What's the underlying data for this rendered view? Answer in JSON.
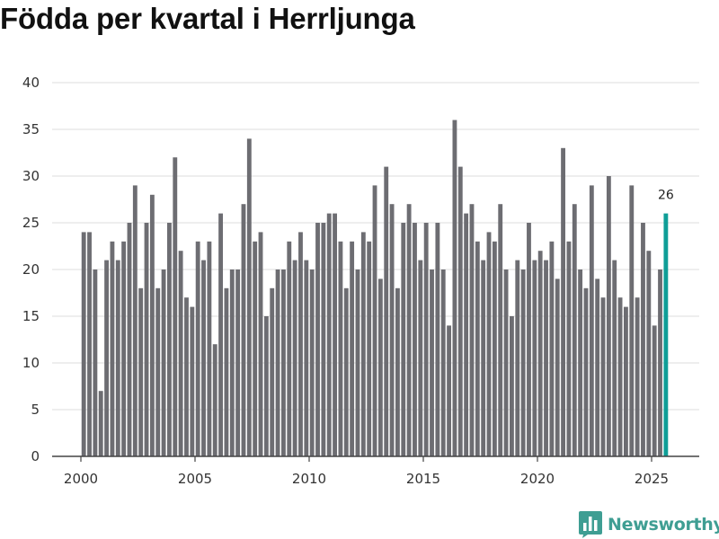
{
  "chart_data": {
    "type": "bar",
    "title": "Födda per kvartal i Herrljunga",
    "xlabel": "",
    "ylabel": "",
    "ylim": [
      0,
      40
    ],
    "yticks": [
      0,
      5,
      10,
      15,
      20,
      25,
      30,
      35,
      40
    ],
    "xticks": [
      2000,
      2005,
      2010,
      2015,
      2020,
      2025
    ],
    "start_year": 2000,
    "start_quarter": 1,
    "grid": true,
    "values": [
      24,
      24,
      20,
      7,
      21,
      23,
      21,
      23,
      25,
      29,
      18,
      25,
      28,
      18,
      20,
      25,
      32,
      22,
      17,
      16,
      23,
      21,
      23,
      12,
      26,
      18,
      20,
      20,
      27,
      34,
      23,
      24,
      15,
      18,
      20,
      20,
      23,
      21,
      24,
      21,
      20,
      25,
      25,
      26,
      26,
      23,
      18,
      23,
      20,
      24,
      23,
      29,
      19,
      31,
      27,
      18,
      25,
      27,
      25,
      21,
      25,
      20,
      25,
      20,
      14,
      36,
      31,
      26,
      27,
      23,
      21,
      24,
      23,
      27,
      20,
      15,
      21,
      20,
      25,
      21,
      22,
      21,
      23,
      19,
      33,
      23,
      27,
      20,
      18,
      29,
      19,
      17,
      30,
      21,
      17,
      16,
      29,
      17,
      25,
      22,
      14,
      20,
      26
    ],
    "bar_color": "#6d6d72",
    "highlight_color": "#0f9e97",
    "last_label": "26"
  },
  "brand": {
    "name": "Newsworthy",
    "color": "#3f9e93",
    "icon": "bar-chart-logo-icon"
  }
}
